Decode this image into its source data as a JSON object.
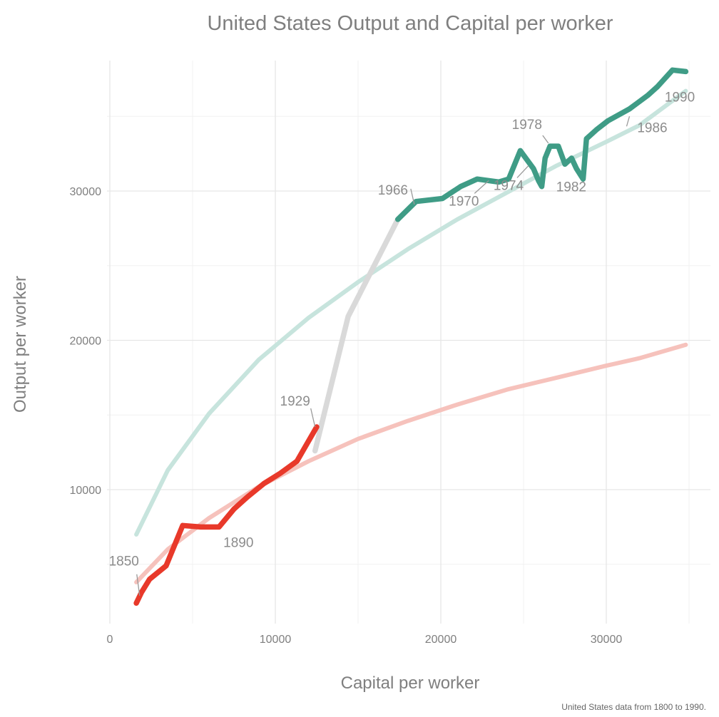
{
  "chart_data": {
    "type": "line",
    "title": "United States Output and Capital per worker",
    "xlabel": "Capital per worker",
    "ylabel": "Output per worker",
    "caption": "United States data from 1800 to 1990.",
    "xlim": [
      0,
      36000
    ],
    "ylim": [
      1200,
      38500
    ],
    "x_ticks": [
      0,
      10000,
      20000,
      30000
    ],
    "x_tick_labels": [
      "0",
      "10000",
      "20000",
      "30000"
    ],
    "y_ticks": [
      10000,
      20000,
      30000
    ],
    "y_tick_labels": [
      "10000",
      "20000",
      "30000"
    ],
    "grid": true,
    "legend": "none",
    "colors": {
      "early": "#e8392a",
      "transition": "#d9d9d9",
      "late": "#3f9c86",
      "early_fit": "#f6c2bc",
      "late_fit": "#c7e4dd"
    },
    "series": [
      {
        "key": "early",
        "x": [
          1600,
          1900,
          2400,
          3400,
          4400,
          5500,
          6600,
          7500,
          8300,
          9300,
          10300,
          11300,
          12500
        ],
        "y": [
          2400,
          3100,
          4000,
          4900,
          7600,
          7500,
          7500,
          8700,
          9500,
          10400,
          11100,
          11900,
          14200
        ]
      },
      {
        "key": "transition",
        "x": [
          12400,
          14400,
          17400
        ],
        "y": [
          12600,
          21600,
          28100
        ]
      },
      {
        "key": "late",
        "x": [
          17400,
          18500,
          20100,
          21200,
          22200,
          23500,
          24100,
          24800,
          25600,
          25900,
          26100,
          26300,
          26600,
          27100,
          27500,
          27900,
          28200,
          28600,
          28800,
          29400,
          30100,
          31400,
          32500,
          33100,
          34000,
          34800
        ],
        "y": [
          28100,
          29300,
          29500,
          30300,
          30800,
          30600,
          30800,
          32700,
          31500,
          30700,
          30300,
          32200,
          33000,
          33000,
          31800,
          32200,
          31500,
          30800,
          33500,
          34100,
          34700,
          35500,
          36400,
          37000,
          38100,
          38000
        ]
      },
      {
        "key": "late_fit",
        "x": [
          1600,
          3500,
          6000,
          9000,
          12000,
          15000,
          18000,
          21000,
          24000,
          27000,
          30000,
          32000,
          34800
        ],
        "y": [
          7000,
          11300,
          15100,
          18700,
          21500,
          23900,
          26100,
          28100,
          29900,
          31700,
          33300,
          34400,
          36700
        ]
      },
      {
        "key": "early_fit",
        "x": [
          1600,
          3500,
          6000,
          9000,
          12000,
          15000,
          18000,
          21000,
          24000,
          27000,
          30000,
          32000,
          34800
        ],
        "y": [
          3800,
          6000,
          8100,
          10200,
          11900,
          13400,
          14600,
          15700,
          16700,
          17500,
          18300,
          18800,
          19700
        ]
      }
    ],
    "annotations": [
      {
        "text": "1850",
        "x": 1800,
        "y": 2900
      },
      {
        "text": "1890",
        "x": 5100,
        "y": 7500
      },
      {
        "text": "1929",
        "x": 12400,
        "y": 14200
      },
      {
        "text": "1966",
        "x": 18400,
        "y": 29100
      },
      {
        "text": "1970",
        "x": 22900,
        "y": 30700
      },
      {
        "text": "1974",
        "x": 25300,
        "y": 31700
      },
      {
        "text": "1978",
        "x": 26500,
        "y": 33200
      },
      {
        "text": "1982",
        "x": 28400,
        "y": 31600
      },
      {
        "text": "1986",
        "x": 31400,
        "y": 35000
      },
      {
        "text": "1990",
        "x": 34700,
        "y": 37900
      }
    ]
  }
}
